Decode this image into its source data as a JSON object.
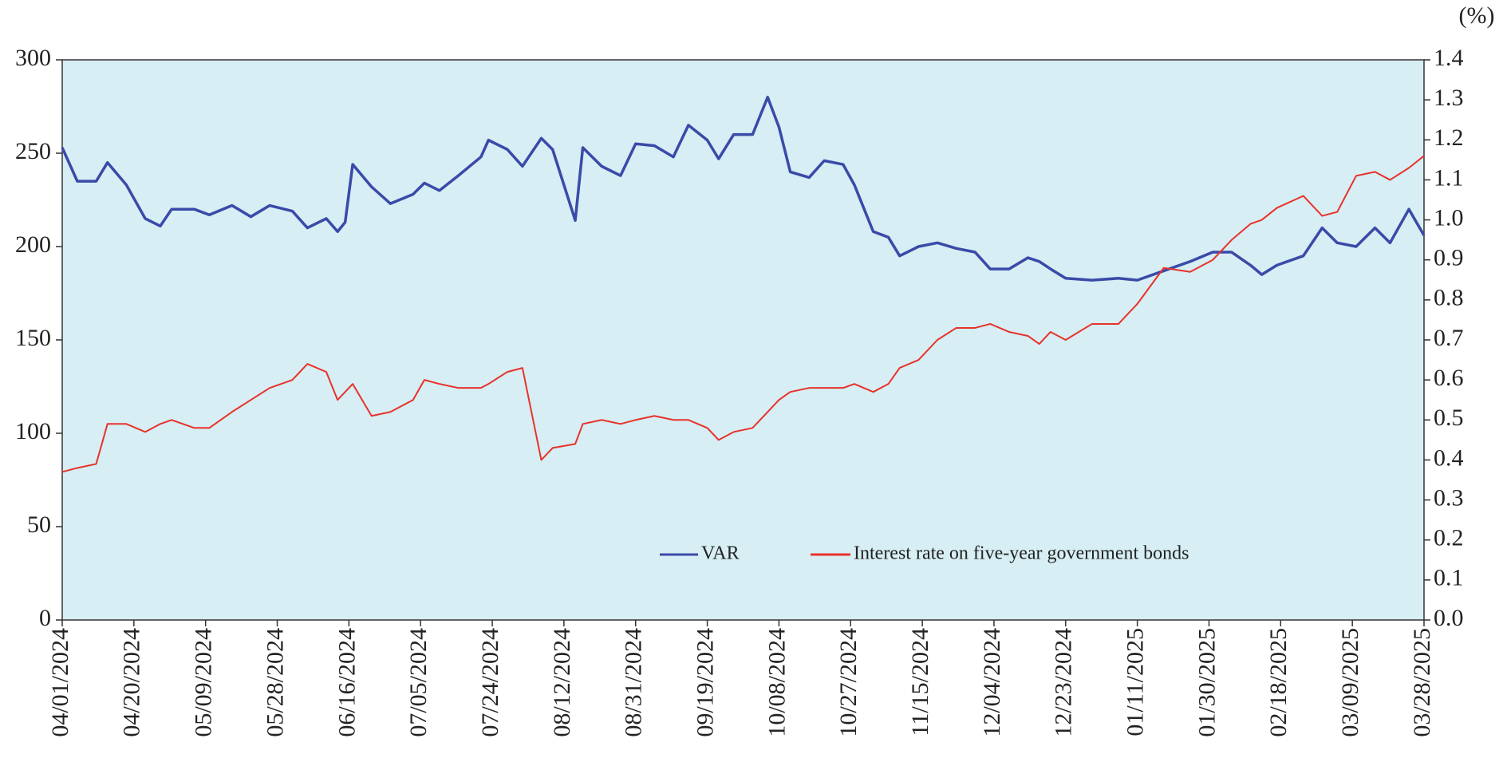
{
  "chart_data": {
    "type": "line",
    "y2_axis_label": "(%)",
    "x": [
      "04/01/2024",
      "04/05/2024",
      "04/10/2024",
      "04/13/2024",
      "04/18/2024",
      "04/23/2024",
      "04/27/2024",
      "04/30/2024",
      "05/06/2024",
      "05/10/2024",
      "05/16/2024",
      "05/21/2024",
      "05/26/2024",
      "06/01/2024",
      "06/05/2024",
      "06/10/2024",
      "06/13/2024",
      "06/15/2024",
      "06/17/2024",
      "06/22/2024",
      "06/27/2024",
      "07/03/2024",
      "07/06/2024",
      "07/10/2024",
      "07/15/2024",
      "07/21/2024",
      "07/23/2024",
      "07/28/2024",
      "08/01/2024",
      "08/06/2024",
      "08/09/2024",
      "08/15/2024",
      "08/17/2024",
      "08/22/2024",
      "08/27/2024",
      "08/31/2024",
      "09/05/2024",
      "09/10/2024",
      "09/14/2024",
      "09/19/2024",
      "09/22/2024",
      "09/26/2024",
      "10/01/2024",
      "10/05/2024",
      "10/08/2024",
      "10/11/2024",
      "10/16/2024",
      "10/20/2024",
      "10/25/2024",
      "10/28/2024",
      "11/02/2024",
      "11/06/2024",
      "11/09/2024",
      "11/14/2024",
      "11/19/2024",
      "11/24/2024",
      "11/29/2024",
      "12/03/2024",
      "12/08/2024",
      "12/13/2024",
      "12/16/2024",
      "12/19/2024",
      "12/23/2024",
      "12/30/2024",
      "01/06/2025",
      "01/11/2025",
      "01/18/2025",
      "01/25/2025",
      "01/31/2025",
      "02/05/2025",
      "02/10/2025",
      "02/13/2025",
      "02/17/2025",
      "02/24/2025",
      "03/01/2025",
      "03/05/2025",
      "03/10/2025",
      "03/15/2025",
      "03/19/2025",
      "03/24/2025",
      "03/28/2025"
    ],
    "series": [
      {
        "name": "VAR",
        "color": "#3a4aa8",
        "values": [
          253,
          235,
          235,
          245,
          233,
          215,
          211,
          220,
          220,
          217,
          222,
          216,
          222,
          219,
          210,
          215,
          208,
          213,
          244,
          232,
          223,
          228,
          234,
          230,
          238,
          248,
          257,
          252,
          243,
          258,
          252,
          214,
          253,
          243,
          238,
          255,
          254,
          248,
          265,
          257,
          247,
          260,
          260,
          280,
          264,
          240,
          237,
          246,
          244,
          233,
          208,
          205,
          195,
          200,
          202,
          199,
          197,
          188,
          188,
          194,
          192,
          188,
          183,
          182,
          183,
          182,
          187,
          192,
          197,
          197,
          190,
          185,
          190,
          195,
          210,
          202,
          200,
          210,
          202,
          220,
          206
        ]
      },
      {
        "name": "Interest rate on five-year government bonds",
        "color": "#e8322a",
        "axis": "y2",
        "values": [
          0.37,
          0.38,
          0.39,
          0.49,
          0.49,
          0.47,
          0.49,
          0.5,
          0.48,
          0.48,
          0.52,
          0.55,
          0.58,
          0.6,
          0.64,
          0.62,
          0.55,
          0.57,
          0.59,
          0.51,
          0.52,
          0.55,
          0.6,
          0.59,
          0.58,
          0.58,
          0.59,
          0.62,
          0.63,
          0.4,
          0.43,
          0.44,
          0.49,
          0.5,
          0.49,
          0.5,
          0.51,
          0.5,
          0.5,
          0.48,
          0.45,
          0.47,
          0.48,
          0.52,
          0.55,
          0.57,
          0.58,
          0.58,
          0.58,
          0.59,
          0.57,
          0.59,
          0.63,
          0.65,
          0.7,
          0.73,
          0.73,
          0.74,
          0.72,
          0.71,
          0.69,
          0.72,
          0.7,
          0.74,
          0.74,
          0.79,
          0.88,
          0.87,
          0.9,
          0.95,
          0.99,
          1.0,
          1.03,
          1.06,
          1.01,
          1.02,
          1.11,
          1.12,
          1.1,
          1.13,
          1.16
        ]
      }
    ],
    "xlim": [
      "04/01/2024",
      "03/28/2025"
    ],
    "xticks": [
      "04/01/2024",
      "04/20/2024",
      "05/09/2024",
      "05/28/2024",
      "06/16/2024",
      "07/05/2024",
      "07/24/2024",
      "08/12/2024",
      "08/31/2024",
      "09/19/2024",
      "10/08/2024",
      "10/27/2024",
      "11/15/2024",
      "12/04/2024",
      "12/23/2024",
      "01/11/2025",
      "01/30/2025",
      "02/18/2025",
      "03/09/2025",
      "03/28/2025"
    ],
    "ylim": [
      0,
      300
    ],
    "yticks": [
      0,
      50,
      100,
      150,
      200,
      250,
      300
    ],
    "y2lim": [
      0,
      1.4
    ],
    "y2ticks": [
      {
        "value": 0,
        "label": "0.0"
      },
      0.1,
      0.2,
      0.3,
      0.4,
      0.5,
      0.6,
      0.7,
      0.8,
      0.9,
      {
        "value": 1,
        "label": "1.0"
      },
      1.1,
      1.2,
      1.3,
      1.4
    ],
    "background": "#d6eef4"
  }
}
